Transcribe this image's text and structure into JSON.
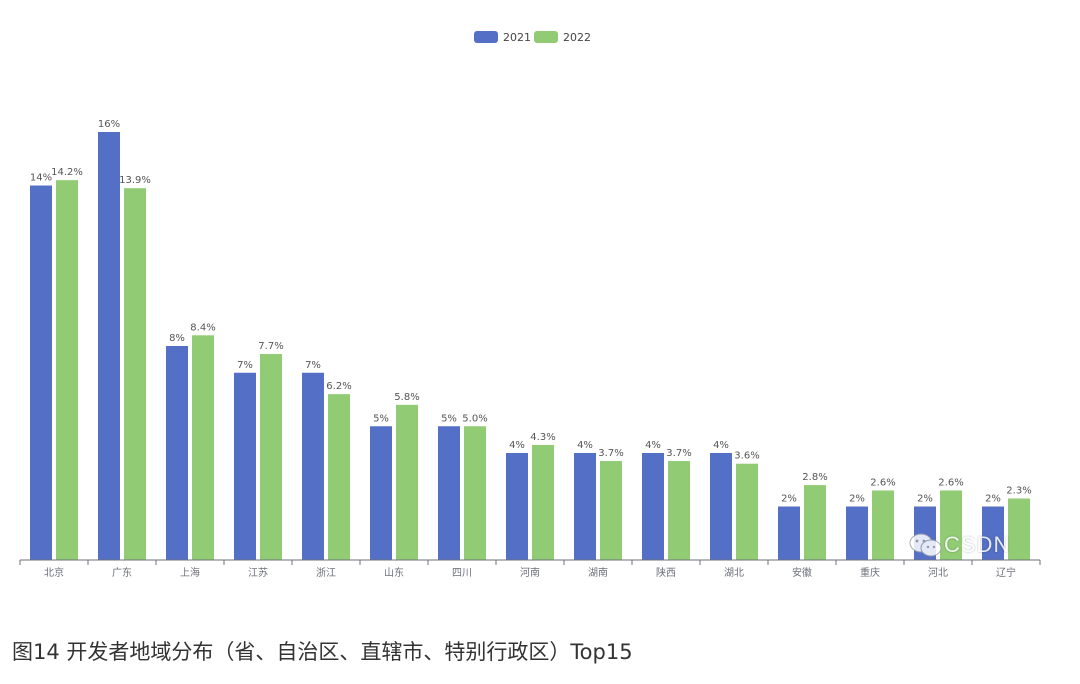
{
  "caption": "图14 开发者地域分布（省、自治区、直辖市、特别行政区）Top15",
  "watermark": {
    "text": "CSDN",
    "icon": "wechat-icon"
  },
  "colors": {
    "s2021": "#5470c6",
    "s2022": "#91cc75",
    "axis": "#6e7079",
    "label": "#555555"
  },
  "chart_data": {
    "type": "bar",
    "legend_position": "top-center",
    "grid": false,
    "ylim": [
      0,
      16
    ],
    "categories": [
      "北京",
      "广东",
      "上海",
      "江苏",
      "浙江",
      "山东",
      "四川",
      "河南",
      "湖南",
      "陕西",
      "湖北",
      "安徽",
      "重庆",
      "河北",
      "辽宁"
    ],
    "series": [
      {
        "name": "2021",
        "values": [
          14,
          16,
          8,
          7,
          7,
          5,
          5,
          4,
          4,
          4,
          4,
          2,
          2,
          2,
          2
        ],
        "labels": [
          "14%",
          "16%",
          "8%",
          "7%",
          "7%",
          "5%",
          "5%",
          "4%",
          "4%",
          "4%",
          "4%",
          "2%",
          "2%",
          "2%",
          "2%"
        ]
      },
      {
        "name": "2022",
        "values": [
          14.2,
          13.9,
          8.4,
          7.7,
          6.2,
          5.8,
          5.0,
          4.3,
          3.7,
          3.7,
          3.6,
          2.8,
          2.6,
          2.6,
          2.3
        ],
        "labels": [
          "14.2%",
          "13.9%",
          "8.4%",
          "7.7%",
          "6.2%",
          "5.8%",
          "5.0%",
          "4.3%",
          "3.7%",
          "3.7%",
          "3.6%",
          "2.8%",
          "2.6%",
          "2.6%",
          "2.3%"
        ]
      }
    ]
  }
}
